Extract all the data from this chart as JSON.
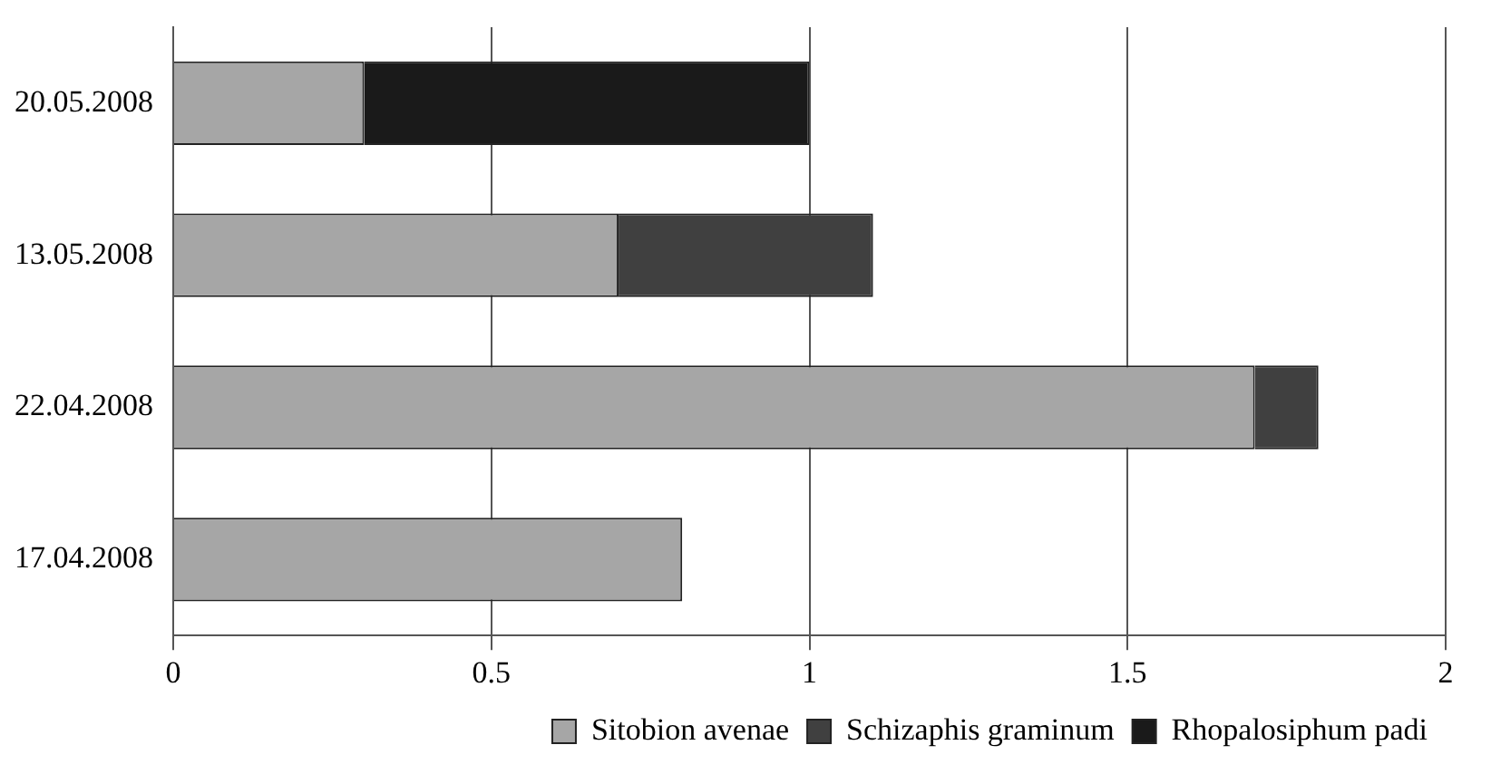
{
  "chart_data": {
    "type": "bar",
    "orientation": "horizontal",
    "stacked": true,
    "categories": [
      "20.05.2008",
      "13.05.2008",
      "22.04.2008",
      "17.04.2008"
    ],
    "series": [
      {
        "name": "Sitobion avenae",
        "color": "#a6a6a6",
        "values": [
          0.3,
          0.7,
          1.7,
          0.8
        ]
      },
      {
        "name": "Schizaphis graminum",
        "color": "#404040",
        "values": [
          0,
          0.4,
          0.1,
          0
        ]
      },
      {
        "name": "Rhopalosiphum padi",
        "color": "#1a1a1a",
        "values": [
          0.7,
          0,
          0,
          0
        ]
      }
    ],
    "xlim": [
      0,
      2
    ],
    "xticks": [
      0,
      0.5,
      1,
      1.5,
      2
    ],
    "grid": "x",
    "legend": "bottom"
  }
}
